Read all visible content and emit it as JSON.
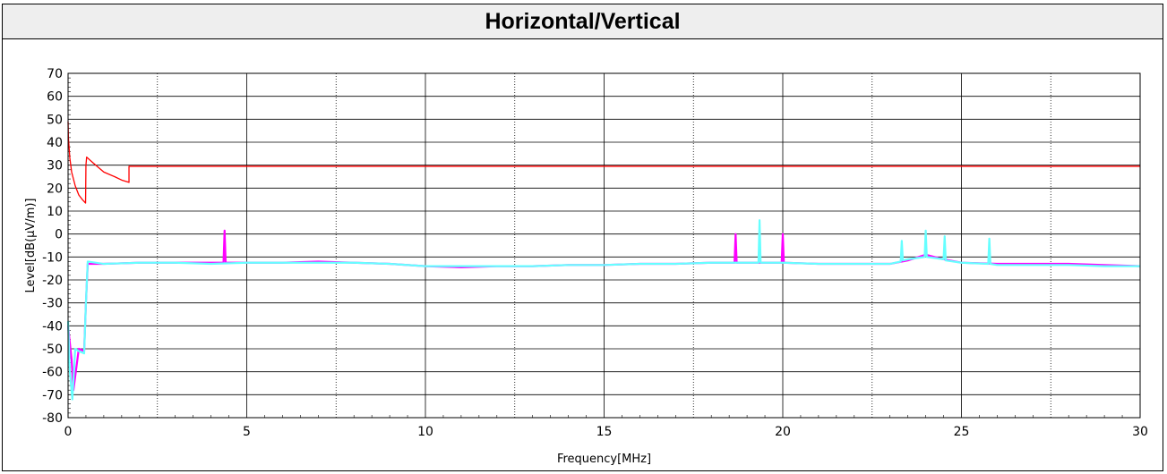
{
  "chart_data": {
    "type": "line",
    "title": "Horizontal/Vertical",
    "xlabel": "Frequency[MHz]",
    "ylabel": "Level[dB(μV/m)]",
    "xlim": [
      0,
      30
    ],
    "ylim": [
      -80,
      70
    ],
    "x_ticks": [
      0,
      5,
      10,
      15,
      20,
      25,
      30
    ],
    "y_ticks": [
      70,
      60,
      50,
      40,
      30,
      20,
      10,
      0,
      -10,
      -20,
      -30,
      -40,
      -50,
      -60,
      -70,
      -80
    ],
    "grid": true,
    "series": [
      {
        "color": "#ff0000",
        "points": [
          [
            0.0,
            49
          ],
          [
            0.009,
            42
          ],
          [
            0.05,
            33
          ],
          [
            0.1,
            27
          ],
          [
            0.2,
            21
          ],
          [
            0.3,
            17
          ],
          [
            0.4,
            15
          ],
          [
            0.49,
            13.5
          ],
          [
            0.5,
            30
          ],
          [
            0.52,
            33.5
          ],
          [
            0.7,
            31
          ],
          [
            1.0,
            27
          ],
          [
            1.3,
            25
          ],
          [
            1.5,
            23.5
          ],
          [
            1.705,
            22.5
          ],
          [
            1.705,
            29.5
          ],
          [
            30.0,
            29.5
          ]
        ]
      },
      {
        "color": "#ff00ff",
        "points": [
          [
            0.0,
            -40
          ],
          [
            0.1,
            -55
          ],
          [
            0.15,
            -68
          ],
          [
            0.3,
            -50
          ],
          [
            0.45,
            -51
          ],
          [
            0.5,
            -30
          ],
          [
            0.55,
            -13
          ],
          [
            1.0,
            -13
          ],
          [
            2.0,
            -12.5
          ],
          [
            3.0,
            -12.5
          ],
          [
            4.0,
            -12.5
          ],
          [
            4.35,
            -12.5
          ],
          [
            4.38,
            1.5
          ],
          [
            4.41,
            -12.5
          ],
          [
            5.0,
            -12.5
          ],
          [
            6.0,
            -12.5
          ],
          [
            7.0,
            -12
          ],
          [
            8.0,
            -12.5
          ],
          [
            9.0,
            -13
          ],
          [
            10.0,
            -14
          ],
          [
            11.0,
            -14.5
          ],
          [
            12.0,
            -14
          ],
          [
            13.0,
            -14
          ],
          [
            14.0,
            -13.5
          ],
          [
            15.0,
            -13.5
          ],
          [
            16.0,
            -13
          ],
          [
            17.0,
            -13
          ],
          [
            18.0,
            -12.5
          ],
          [
            18.65,
            -12.5
          ],
          [
            18.68,
            0
          ],
          [
            18.71,
            -12.5
          ],
          [
            19.0,
            -12.5
          ],
          [
            19.97,
            -12.5
          ],
          [
            20.0,
            0
          ],
          [
            20.03,
            -12.5
          ],
          [
            21.0,
            -13
          ],
          [
            22.0,
            -13
          ],
          [
            23.0,
            -13
          ],
          [
            23.5,
            -11.5
          ],
          [
            24.0,
            -9
          ],
          [
            24.5,
            -11
          ],
          [
            25.0,
            -12.5
          ],
          [
            26.0,
            -13
          ],
          [
            27.0,
            -13
          ],
          [
            28.0,
            -13
          ],
          [
            29.0,
            -13.5
          ],
          [
            30.0,
            -14
          ]
        ]
      },
      {
        "color": "#66ffff",
        "points": [
          [
            0.0,
            -38
          ],
          [
            0.05,
            -60
          ],
          [
            0.12,
            -72
          ],
          [
            0.2,
            -50
          ],
          [
            0.3,
            -51
          ],
          [
            0.45,
            -52
          ],
          [
            0.5,
            -30
          ],
          [
            0.55,
            -12
          ],
          [
            1.0,
            -13
          ],
          [
            2.0,
            -12.5
          ],
          [
            3.0,
            -12.5
          ],
          [
            4.0,
            -13
          ],
          [
            5.0,
            -12.5
          ],
          [
            6.0,
            -12.5
          ],
          [
            7.0,
            -12.5
          ],
          [
            8.0,
            -12.5
          ],
          [
            9.0,
            -13
          ],
          [
            10.0,
            -14
          ],
          [
            11.0,
            -14
          ],
          [
            12.0,
            -14
          ],
          [
            13.0,
            -14
          ],
          [
            14.0,
            -13.5
          ],
          [
            15.0,
            -13.5
          ],
          [
            16.0,
            -13
          ],
          [
            17.0,
            -13
          ],
          [
            18.0,
            -12.5
          ],
          [
            19.0,
            -12.5
          ],
          [
            19.32,
            -12.5
          ],
          [
            19.35,
            6
          ],
          [
            19.38,
            -12.5
          ],
          [
            20.0,
            -12.5
          ],
          [
            21.0,
            -13
          ],
          [
            22.0,
            -13
          ],
          [
            23.0,
            -13
          ],
          [
            23.3,
            -12
          ],
          [
            23.33,
            -3
          ],
          [
            23.36,
            -11.5
          ],
          [
            23.5,
            -11
          ],
          [
            23.97,
            -10
          ],
          [
            24.0,
            1.5
          ],
          [
            24.03,
            -10
          ],
          [
            24.5,
            -11
          ],
          [
            24.53,
            -1
          ],
          [
            24.56,
            -11.5
          ],
          [
            25.0,
            -12.5
          ],
          [
            25.75,
            -13
          ],
          [
            25.78,
            -2
          ],
          [
            25.81,
            -13
          ],
          [
            26.0,
            -13.5
          ],
          [
            27.0,
            -13.5
          ],
          [
            28.0,
            -13.5
          ],
          [
            29.0,
            -14
          ],
          [
            30.0,
            -14
          ]
        ]
      }
    ]
  }
}
